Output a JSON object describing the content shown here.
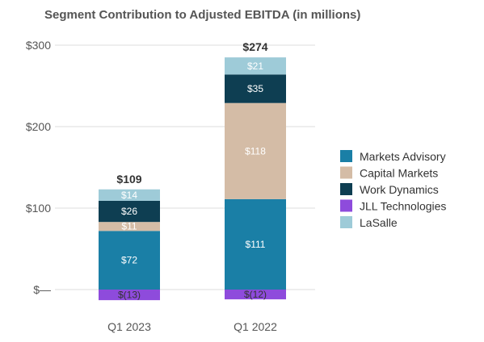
{
  "chart_data": {
    "type": "bar",
    "stacked": true,
    "title": "Segment Contribution to Adjusted EBITDA (in millions)",
    "categories": [
      "Q1 2023",
      "Q1 2022"
    ],
    "totals": [
      109,
      274
    ],
    "total_labels": [
      "$109",
      "$274"
    ],
    "series": [
      {
        "name": "Markets Advisory",
        "color": "#1a7fa6",
        "values": [
          72,
          111
        ],
        "labels": [
          "$72",
          "$111"
        ]
      },
      {
        "name": "Capital Markets",
        "color": "#d4bca6",
        "values": [
          11,
          118
        ],
        "labels": [
          "$11",
          "$118"
        ]
      },
      {
        "name": "Work Dynamics",
        "color": "#0e3e52",
        "values": [
          26,
          35
        ],
        "labels": [
          "$26",
          "$35"
        ]
      },
      {
        "name": "JLL Technologies",
        "color": "#8e4bdc",
        "values": [
          -13,
          -12
        ],
        "labels": [
          "$(13)",
          "$(12)"
        ]
      },
      {
        "name": "LaSalle",
        "color": "#9ecbd8",
        "values": [
          14,
          21
        ],
        "labels": [
          "$14",
          "$21"
        ]
      }
    ],
    "ylim": [
      -15,
      300
    ],
    "yticks": [
      0,
      100,
      200,
      300
    ],
    "ytick_labels": [
      "$—",
      "$100",
      "$200",
      "$300"
    ],
    "grid": true,
    "legend_position": "right",
    "xlabel": "",
    "ylabel": ""
  }
}
